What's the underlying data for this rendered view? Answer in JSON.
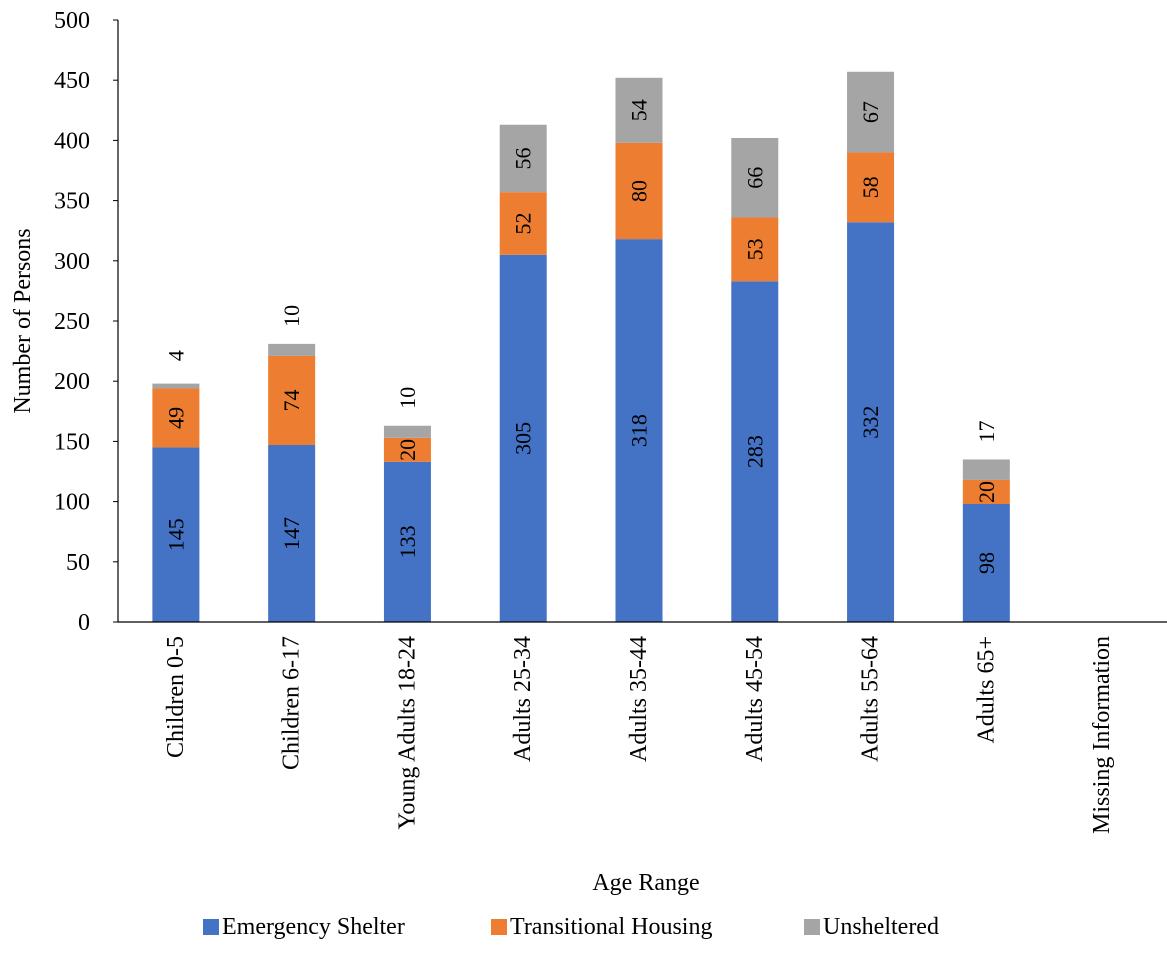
{
  "chart_data": {
    "type": "bar",
    "stacked": true,
    "xlabel": "Age Range",
    "ylabel": "Number of Persons",
    "ylim": [
      0,
      500
    ],
    "ytick_step": 50,
    "grid": false,
    "legend_position": "bottom",
    "categories": [
      "Children 0-5",
      "Children 6-17",
      "Young Adults 18-24",
      "Adults 25-34",
      "Adults 35-44",
      "Adults 45-54",
      "Adults 55-64",
      "Adults 65+",
      "Missing Information"
    ],
    "series": [
      {
        "name": "Emergency Shelter",
        "color": "#4472C4",
        "values": [
          145,
          147,
          133,
          305,
          318,
          283,
          332,
          98,
          null
        ]
      },
      {
        "name": "Transitional Housing",
        "color": "#ED7D31",
        "values": [
          49,
          74,
          20,
          52,
          80,
          53,
          58,
          20,
          null
        ]
      },
      {
        "name": "Unsheltered",
        "color": "#A5A5A5",
        "values": [
          4,
          10,
          10,
          56,
          54,
          66,
          67,
          17,
          null
        ]
      }
    ]
  }
}
